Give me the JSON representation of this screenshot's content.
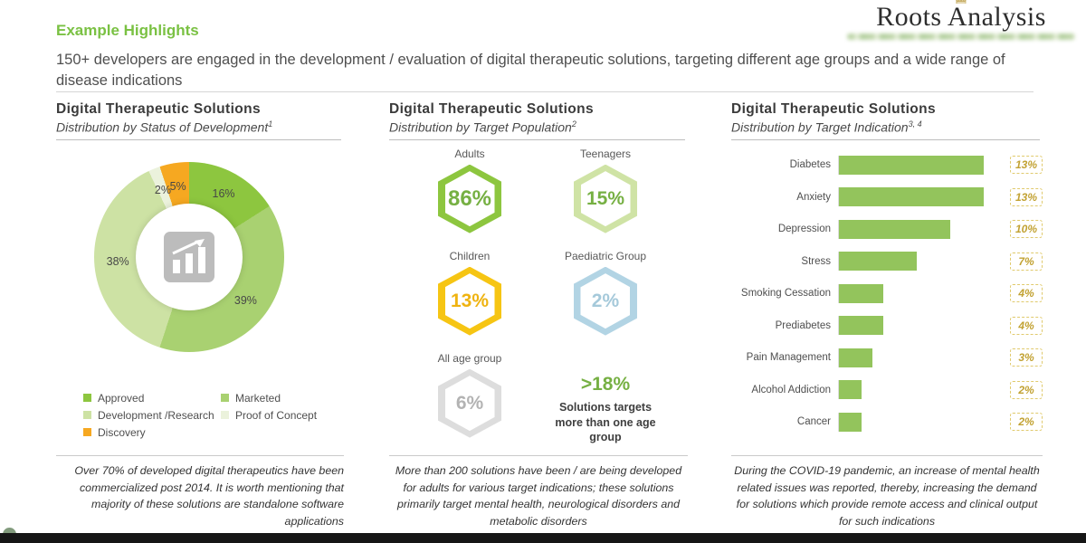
{
  "logo": {
    "name": "Roots Analysis"
  },
  "header": {
    "section_title": "Example Highlights",
    "subtitle": "150+ developers are engaged in the development / evaluation of digital therapeutic solutions, targeting different age groups and a wide range of disease indications"
  },
  "panels": [
    {
      "title": "Digital Therapeutic Solutions",
      "subtitle": "Distribution by Status of Development",
      "footnote_sup": "1",
      "footer": "Over 70% of developed digital therapeutics have been commercialized post 2014. It is worth mentioning that majority of these solutions are standalone software applications"
    },
    {
      "title": "Digital Therapeutic Solutions",
      "subtitle": "Distribution by Target Population",
      "footnote_sup": "2",
      "footer": "More than 200 solutions have been / are being developed for adults for various target indications; these solutions primarily target mental health, neurological disorders and metabolic disorders"
    },
    {
      "title": "Digital Therapeutic Solutions",
      "subtitle": "Distribution by Target Indication",
      "footnote_sup": "3, 4",
      "footer": "During the COVID-19 pandemic, an increase of mental health related issues was reported, thereby, increasing the demand for solutions which provide remote access and clinical output for such indications"
    }
  ],
  "chart_data": [
    {
      "type": "pie",
      "title": "Distribution by Status of Development",
      "labels": [
        "Approved",
        "Marketed",
        "Development /Research",
        "Proof of Concept",
        "Discovery"
      ],
      "values": [
        16,
        39,
        38,
        2,
        5
      ],
      "unit": "%",
      "colors": [
        "#8dc63f",
        "#a9d171",
        "#cde2a4",
        "#ebf2dc",
        "#f6a821"
      ],
      "donut": true,
      "center_icon": "bar-chart-icon",
      "legend_position": "bottom"
    },
    {
      "type": "hexagon-stats",
      "title": "Distribution by Target Population",
      "items": [
        {
          "label": "Adults",
          "value": "86%",
          "ring": "#8dc63f",
          "text": "#76b043"
        },
        {
          "label": "Teenagers",
          "value": "15%",
          "ring": "#cfe3a5",
          "text": "#76b043"
        },
        {
          "label": "Children",
          "value": "13%",
          "ring": "#f6c513",
          "text": "#efb310"
        },
        {
          "label": "Paediatric Group",
          "value": "2%",
          "ring": "#b2d4e4",
          "text": "#a5c9da"
        },
        {
          "label": "All age group",
          "value": "6%",
          "ring": "#dddddd",
          "text": "#b3b3b3"
        }
      ],
      "callout": {
        "value": ">18%",
        "value_color": "#76b043",
        "text": "Solutions targets more than one age group"
      }
    },
    {
      "type": "bar",
      "orientation": "horizontal",
      "title": "Distribution by Target Indication",
      "categories": [
        "Diabetes",
        "Anxiety",
        "Depression",
        "Stress",
        "Smoking Cessation",
        "Prediabetes",
        "Pain Management",
        "Alcohol Addiction",
        "Cancer"
      ],
      "values": [
        13,
        13,
        10,
        7,
        4,
        4,
        3,
        2,
        2
      ],
      "unit": "%",
      "xlim": [
        0,
        14
      ],
      "bar_color": "#93c45c",
      "value_color": "#c2a233",
      "value_border": "#e0ca6d",
      "grid": false,
      "legend_position": "none"
    }
  ]
}
